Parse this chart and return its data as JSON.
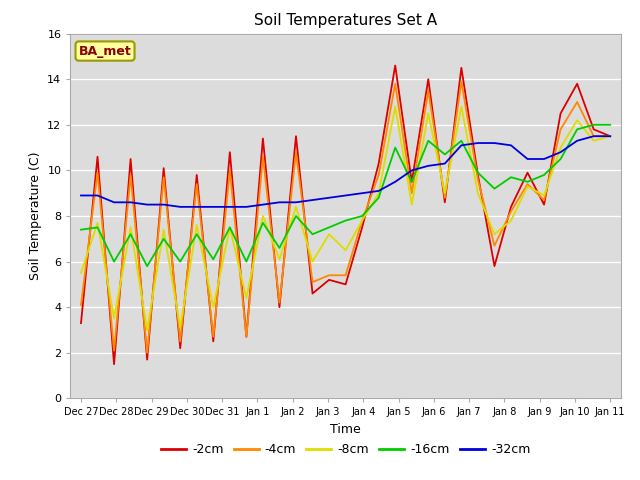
{
  "title": "Soil Temperatures Set A",
  "xlabel": "Time",
  "ylabel": "Soil Temperature (C)",
  "ylim": [
    0,
    16
  ],
  "legend_label": "BA_met",
  "bg_color": "#dcdcdc",
  "series_keys": [
    "-2cm",
    "-4cm",
    "-8cm",
    "-16cm",
    "-32cm"
  ],
  "series_colors": [
    "#dd0000",
    "#ff8800",
    "#dddd00",
    "#00cc00",
    "#0000dd"
  ],
  "tick_labels": [
    "Dec 27",
    "Dec 28",
    "Dec 29",
    "Dec 30",
    "Dec 31",
    "Jan 1",
    "Jan 2",
    "Jan 3",
    "Jan 4",
    "Jan 5",
    "Jan 6",
    "Jan 7",
    "Jan 8",
    "Jan 9",
    "Jan 10",
    "Jan 11"
  ],
  "cm2": [
    3.3,
    10.6,
    1.5,
    10.5,
    1.7,
    10.1,
    2.2,
    9.8,
    2.5,
    10.8,
    2.7,
    11.4,
    4.0,
    11.5,
    4.6,
    5.2,
    5.0,
    7.5,
    10.3,
    14.6,
    9.5,
    14.0,
    8.6,
    14.5,
    9.8,
    5.8,
    8.4,
    9.9,
    8.5,
    12.5,
    13.8,
    11.8,
    11.5
  ],
  "cm4": [
    4.1,
    9.9,
    2.1,
    9.8,
    2.0,
    9.7,
    2.5,
    9.4,
    2.7,
    10.0,
    2.7,
    10.6,
    4.2,
    10.8,
    5.1,
    5.4,
    5.4,
    7.8,
    9.8,
    13.8,
    9.0,
    13.5,
    8.8,
    13.9,
    9.6,
    6.7,
    8.2,
    9.4,
    8.7,
    11.8,
    13.0,
    11.5,
    11.5
  ],
  "cm8": [
    5.5,
    7.7,
    3.5,
    7.5,
    3.0,
    7.4,
    3.1,
    7.6,
    4.0,
    7.5,
    4.4,
    8.0,
    6.1,
    8.4,
    6.0,
    7.2,
    6.5,
    7.8,
    9.0,
    12.8,
    8.5,
    12.5,
    9.0,
    12.8,
    9.0,
    7.2,
    7.8,
    9.3,
    8.9,
    11.0,
    12.2,
    11.3,
    11.5
  ],
  "cm16": [
    7.4,
    7.5,
    6.0,
    7.2,
    5.8,
    7.0,
    6.0,
    7.2,
    6.1,
    7.5,
    6.0,
    7.7,
    6.6,
    8.0,
    7.2,
    7.5,
    7.8,
    8.0,
    8.8,
    11.0,
    9.5,
    11.3,
    10.7,
    11.3,
    9.9,
    9.2,
    9.7,
    9.5,
    9.8,
    10.5,
    11.8,
    12.0,
    12.0
  ],
  "cm32": [
    8.9,
    8.9,
    8.6,
    8.6,
    8.5,
    8.5,
    8.4,
    8.4,
    8.4,
    8.4,
    8.4,
    8.5,
    8.6,
    8.6,
    8.7,
    8.8,
    8.9,
    9.0,
    9.1,
    9.5,
    10.0,
    10.2,
    10.3,
    11.1,
    11.2,
    11.2,
    11.1,
    10.5,
    10.5,
    10.8,
    11.3,
    11.5,
    11.5
  ]
}
